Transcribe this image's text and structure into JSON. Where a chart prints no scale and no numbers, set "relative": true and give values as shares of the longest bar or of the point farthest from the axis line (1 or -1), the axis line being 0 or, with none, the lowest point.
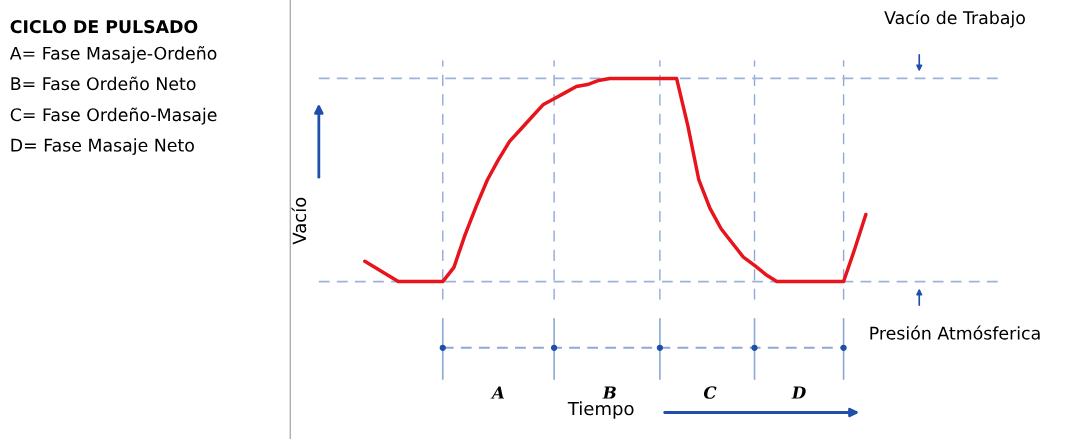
{
  "chart_data": {
    "type": "line",
    "relative": true,
    "title": "CICLO DE PULSADO",
    "annotations": [
      "A= Fase Masaje-Ordeño",
      "B= Fase Ordeño Neto",
      "C= Fase Ordeño-Masaje",
      "D= Fase Masaje Neto",
      "Tiempo"
    ],
    "ylabel": "Vacío",
    "marker": "none",
    "line_style": "solid",
    "grid": "x",
    "categories": [
      null,
      null,
      null,
      null,
      null,
      null,
      null,
      null,
      null,
      null,
      null,
      null,
      "A",
      null,
      null,
      null,
      null,
      null,
      null,
      null,
      null,
      null,
      "B",
      null,
      null,
      null,
      null,
      null,
      null,
      null,
      null,
      "C",
      null,
      null,
      null,
      null,
      null,
      null,
      null,
      "D",
      null,
      null,
      null,
      null,
      null,
      null
    ],
    "series": [
      {
        "color": "#e8141c",
        "values": [
          0.1,
          0.067,
          0.034,
          0,
          0,
          0,
          0,
          0,
          0.07,
          0.23,
          0.37,
          0.5,
          0.6,
          0.69,
          0.75,
          0.81,
          0.87,
          0.9,
          0.93,
          0.96,
          0.97,
          0.99,
          1,
          1,
          1,
          1,
          1,
          1,
          1,
          0.77,
          0.5,
          0.36,
          0.26,
          0.19,
          0.12,
          0.08,
          0.035,
          0,
          0,
          0,
          0,
          0,
          0,
          0,
          0.16,
          0.33
        ]
      }
    ],
    "ref_lines": [
      {
        "axis": "y",
        "value": 1,
        "label": "Vacío de Trabajo",
        "color": "#9db3d9",
        "line_style": "dashed"
      },
      {
        "axis": "y",
        "value": 0,
        "label": "Presión Atmósferica",
        "color": "#9db3d9",
        "line_style": "dashed"
      }
    ]
  }
}
